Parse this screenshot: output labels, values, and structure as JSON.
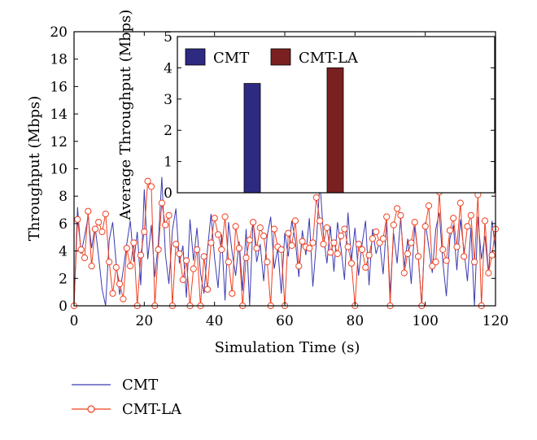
{
  "chart_data": [
    {
      "type": "line",
      "title": "",
      "xlabel": "Simulation Time (s)",
      "ylabel": "Throughput (Mbps)",
      "xlim": [
        0,
        120
      ],
      "ylim": [
        0,
        20
      ],
      "xticks": [
        "0",
        "20",
        "40",
        "60",
        "80",
        "100",
        "120"
      ],
      "yticks": [
        "0",
        "2",
        "4",
        "6",
        "8",
        "10",
        "12",
        "14",
        "16",
        "18",
        "20"
      ],
      "grid": false,
      "legend_position": "below",
      "x": [
        0,
        1,
        2,
        3,
        4,
        5,
        6,
        7,
        8,
        9,
        10,
        11,
        12,
        13,
        14,
        15,
        16,
        17,
        18,
        19,
        20,
        21,
        22,
        23,
        24,
        25,
        26,
        27,
        28,
        29,
        30,
        31,
        32,
        33,
        34,
        35,
        36,
        37,
        38,
        39,
        40,
        41,
        42,
        43,
        44,
        45,
        46,
        47,
        48,
        49,
        50,
        51,
        52,
        53,
        54,
        55,
        56,
        57,
        58,
        59,
        60,
        61,
        62,
        63,
        64,
        65,
        66,
        67,
        68,
        69,
        70,
        71,
        72,
        73,
        74,
        75,
        76,
        77,
        78,
        79,
        80,
        81,
        82,
        83,
        84,
        85,
        86,
        87,
        88,
        89,
        90,
        91,
        92,
        93,
        94,
        95,
        96,
        97,
        98,
        99,
        100,
        101,
        102,
        103,
        104,
        105,
        106,
        107,
        108,
        109,
        110,
        111,
        112,
        113,
        114,
        115,
        116,
        117,
        118,
        119,
        120
      ],
      "series": [
        {
          "name": "CMT",
          "color": "#3b3bb3",
          "values": [
            0,
            7.2,
            3.8,
            5.1,
            6.5,
            4.2,
            5.8,
            3.6,
            1.2,
            0,
            4.8,
            6.1,
            3.1,
            0.8,
            2.6,
            4.5,
            6.2,
            3.2,
            5.4,
            1.5,
            8.5,
            3.4,
            5.9,
            2.1,
            4.6,
            9.4,
            3.8,
            1.6,
            5.5,
            7.1,
            3.1,
            4.4,
            0.6,
            6.3,
            3.3,
            5.7,
            2.4,
            0.9,
            4.1,
            6.7,
            3.5,
            1.3,
            5.2,
            0.4,
            6.1,
            3.9,
            2.2,
            4.7,
            1.1,
            5.6,
            0,
            6.3,
            3.2,
            4.5,
            1.8,
            5.1,
            6.5,
            2.7,
            4.2,
            0.9,
            5.3,
            3.6,
            6.2,
            4.8,
            2.1,
            5.5,
            3.7,
            6.4,
            1.4,
            4.6,
            9.1,
            5.2,
            3.1,
            5.8,
            2.5,
            6.1,
            4.2,
            1.9,
            6.8,
            3.3,
            5.7,
            2.2,
            4.5,
            6.2,
            1.5,
            5.6,
            3.8,
            4.7,
            2.3,
            6.1,
            0.9,
            5.3,
            3.1,
            6.4,
            2.8,
            4.9,
            1.6,
            5.8,
            3.7,
            0,
            6.1,
            4.3,
            2.4,
            5.6,
            6.8,
            3.2,
            0.7,
            4.9,
            5.9,
            2.6,
            6.3,
            4.1,
            1.8,
            5.7,
            0,
            6.5,
            3.4,
            5.1,
            2.3,
            6.2,
            4.1
          ]
        },
        {
          "name": "CMT-LA",
          "color": "#f0401f",
          "values": [
            0,
            6.3,
            4.1,
            3.5,
            6.9,
            2.9,
            5.6,
            6.1,
            5.4,
            6.7,
            3.2,
            0.9,
            2.8,
            1.6,
            0.5,
            4.2,
            2.9,
            4.6,
            0,
            3.7,
            5.4,
            9.1,
            8.7,
            0,
            4.1,
            7.5,
            5.9,
            6.6,
            0,
            4.5,
            3.8,
            1.9,
            3.3,
            0,
            2.7,
            4.1,
            0,
            3.6,
            1.2,
            4.6,
            6.4,
            5.2,
            4.1,
            6.5,
            3.2,
            0.9,
            5.8,
            4.2,
            0,
            3.5,
            4.8,
            6.1,
            4.2,
            5.7,
            5.1,
            3.2,
            0,
            5.6,
            4.3,
            4.1,
            0,
            5.3,
            4.4,
            6.2,
            2.9,
            4.7,
            4.3,
            4.2,
            4.6,
            7.9,
            6.2,
            4.5,
            5.7,
            3.9,
            4.6,
            3.8,
            5.1,
            5.6,
            4.3,
            3.1,
            0,
            4.5,
            4.1,
            2.8,
            3.7,
            4.9,
            5.4,
            4.6,
            4.9,
            6.5,
            0,
            5.9,
            7.1,
            6.6,
            2.4,
            3.8,
            4.6,
            6.1,
            3.6,
            0,
            5.8,
            7.3,
            2.9,
            3.2,
            8.3,
            4.1,
            3.3,
            5.5,
            6.4,
            4.3,
            7.5,
            3.6,
            5.8,
            6.6,
            3.2,
            8.1,
            0,
            6.2,
            2.4,
            3.7,
            5.6
          ]
        }
      ]
    },
    {
      "type": "bar",
      "title": "",
      "xlabel": "",
      "ylabel": "Average Throughput (Mbps)",
      "categories": [
        "CMT",
        "CMT-LA"
      ],
      "ylim": [
        0,
        5
      ],
      "yticks": [
        "0",
        "1",
        "2",
        "3",
        "4",
        "5"
      ],
      "grid": false,
      "legend_position": "top",
      "series": [
        {
          "name": "CMT",
          "color": "#2e2a82",
          "values": [
            3.5,
            null
          ]
        },
        {
          "name": "CMT-LA",
          "color": "#7a2020",
          "values": [
            null,
            4.0
          ]
        }
      ]
    }
  ]
}
